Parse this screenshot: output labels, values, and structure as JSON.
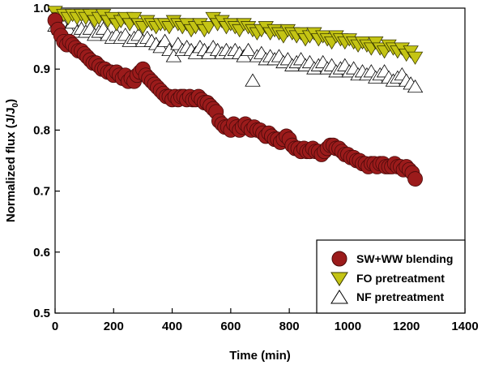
{
  "chart_data": {
    "type": "scatter",
    "xlabel": "Time (min)",
    "ylabel_main": "Normalized flux (J/J",
    "ylabel_sub": "0",
    "ylabel_end": ")",
    "xlim": [
      0,
      1400
    ],
    "ylim": [
      0.5,
      1.0
    ],
    "x_ticks": [
      0,
      200,
      400,
      600,
      800,
      1000,
      1200,
      1400
    ],
    "y_ticks": [
      0.5,
      0.6,
      0.7,
      0.8,
      0.9,
      1.0
    ],
    "y_tick_labels": [
      "0.5",
      "0.6",
      "0.7",
      "0.8",
      "0.9",
      "1.0"
    ],
    "grid": false,
    "legend_position": "bottom-right",
    "series": [
      {
        "name": "SW+WW blending",
        "marker": "circle",
        "color": "#9b1b1b",
        "stroke": "#4a0a0a",
        "x": [
          0,
          10,
          20,
          30,
          40,
          50,
          60,
          70,
          80,
          90,
          100,
          110,
          120,
          130,
          140,
          150,
          160,
          170,
          180,
          190,
          200,
          210,
          220,
          230,
          240,
          250,
          260,
          270,
          280,
          290,
          300,
          310,
          320,
          330,
          340,
          350,
          360,
          370,
          380,
          390,
          400,
          410,
          420,
          430,
          440,
          450,
          460,
          470,
          480,
          490,
          500,
          510,
          520,
          530,
          540,
          550,
          560,
          570,
          580,
          590,
          600,
          610,
          620,
          630,
          640,
          650,
          660,
          670,
          680,
          690,
          700,
          710,
          720,
          730,
          740,
          750,
          760,
          770,
          780,
          790,
          800,
          810,
          820,
          830,
          840,
          850,
          860,
          870,
          880,
          890,
          900,
          910,
          920,
          930,
          940,
          950,
          960,
          970,
          980,
          990,
          1000,
          1010,
          1020,
          1030,
          1040,
          1050,
          1060,
          1070,
          1080,
          1090,
          1100,
          1110,
          1120,
          1130,
          1140,
          1150,
          1160,
          1170,
          1180,
          1190,
          1200,
          1210,
          1220,
          1230
        ],
        "y": [
          0.98,
          0.965,
          0.955,
          0.945,
          0.94,
          0.945,
          0.94,
          0.935,
          0.93,
          0.93,
          0.925,
          0.92,
          0.915,
          0.91,
          0.91,
          0.905,
          0.9,
          0.9,
          0.895,
          0.895,
          0.89,
          0.895,
          0.89,
          0.885,
          0.89,
          0.88,
          0.885,
          0.88,
          0.89,
          0.895,
          0.9,
          0.89,
          0.885,
          0.88,
          0.875,
          0.87,
          0.865,
          0.86,
          0.855,
          0.855,
          0.85,
          0.855,
          0.85,
          0.855,
          0.855,
          0.85,
          0.855,
          0.85,
          0.85,
          0.855,
          0.85,
          0.845,
          0.845,
          0.84,
          0.835,
          0.83,
          0.815,
          0.81,
          0.805,
          0.805,
          0.8,
          0.81,
          0.805,
          0.8,
          0.805,
          0.81,
          0.805,
          0.8,
          0.805,
          0.8,
          0.8,
          0.795,
          0.79,
          0.795,
          0.79,
          0.785,
          0.785,
          0.78,
          0.785,
          0.79,
          0.785,
          0.775,
          0.77,
          0.77,
          0.765,
          0.77,
          0.765,
          0.765,
          0.77,
          0.765,
          0.765,
          0.76,
          0.765,
          0.77,
          0.775,
          0.775,
          0.77,
          0.77,
          0.765,
          0.76,
          0.76,
          0.755,
          0.755,
          0.75,
          0.75,
          0.745,
          0.745,
          0.74,
          0.745,
          0.745,
          0.74,
          0.745,
          0.745,
          0.74,
          0.74,
          0.74,
          0.745,
          0.74,
          0.74,
          0.735,
          0.74,
          0.735,
          0.73,
          0.72
        ]
      },
      {
        "name": "FO pretreatment",
        "marker": "triangle-down",
        "color": "#c4c414",
        "stroke": "#3a3a00",
        "x": [
          0,
          15,
          30,
          45,
          60,
          75,
          90,
          105,
          120,
          135,
          150,
          165,
          180,
          195,
          210,
          225,
          240,
          255,
          270,
          285,
          300,
          315,
          330,
          345,
          360,
          375,
          390,
          405,
          420,
          435,
          450,
          465,
          480,
          495,
          510,
          525,
          540,
          555,
          570,
          585,
          600,
          615,
          630,
          645,
          660,
          675,
          690,
          705,
          720,
          735,
          750,
          765,
          780,
          795,
          810,
          825,
          840,
          855,
          870,
          885,
          900,
          915,
          930,
          945,
          960,
          975,
          990,
          1005,
          1020,
          1035,
          1050,
          1065,
          1080,
          1095,
          1110,
          1125,
          1140,
          1155,
          1170,
          1185,
          1200,
          1215,
          1230
        ],
        "y": [
          0.995,
          0.985,
          0.99,
          0.985,
          0.99,
          0.985,
          0.99,
          0.985,
          0.99,
          0.98,
          0.985,
          0.99,
          0.98,
          0.985,
          0.975,
          0.98,
          0.985,
          0.975,
          0.985,
          0.975,
          0.97,
          0.98,
          0.975,
          0.97,
          0.975,
          0.975,
          0.97,
          0.98,
          0.975,
          0.97,
          0.975,
          0.965,
          0.97,
          0.975,
          0.965,
          0.97,
          0.985,
          0.975,
          0.98,
          0.97,
          0.975,
          0.97,
          0.965,
          0.975,
          0.97,
          0.965,
          0.96,
          0.965,
          0.97,
          0.96,
          0.965,
          0.96,
          0.955,
          0.965,
          0.96,
          0.955,
          0.96,
          0.95,
          0.955,
          0.96,
          0.95,
          0.955,
          0.95,
          0.945,
          0.955,
          0.95,
          0.945,
          0.95,
          0.945,
          0.94,
          0.945,
          0.94,
          0.935,
          0.945,
          0.935,
          0.93,
          0.94,
          0.935,
          0.93,
          0.935,
          0.925,
          0.93,
          0.92
        ]
      },
      {
        "name": "NF pretreatment",
        "marker": "triangle-up",
        "color": "#ffffff",
        "stroke": "#000000",
        "x": [
          0,
          15,
          30,
          45,
          60,
          75,
          90,
          105,
          120,
          135,
          150,
          165,
          180,
          195,
          210,
          225,
          240,
          255,
          270,
          285,
          300,
          315,
          330,
          345,
          360,
          375,
          390,
          405,
          420,
          435,
          450,
          465,
          480,
          495,
          510,
          525,
          540,
          555,
          570,
          585,
          600,
          615,
          630,
          645,
          660,
          675,
          690,
          705,
          720,
          735,
          750,
          765,
          780,
          795,
          810,
          825,
          840,
          855,
          870,
          885,
          900,
          915,
          930,
          945,
          960,
          975,
          990,
          1005,
          1020,
          1035,
          1050,
          1065,
          1080,
          1095,
          1110,
          1125,
          1140,
          1155,
          1170,
          1185,
          1200,
          1215,
          1230
        ],
        "y": [
          0.97,
          0.965,
          0.97,
          0.965,
          0.975,
          0.96,
          0.965,
          0.96,
          0.965,
          0.955,
          0.96,
          0.965,
          0.955,
          0.95,
          0.955,
          0.95,
          0.955,
          0.945,
          0.95,
          0.955,
          0.945,
          0.95,
          0.945,
          0.94,
          0.935,
          0.945,
          0.93,
          0.92,
          0.94,
          0.93,
          0.935,
          0.93,
          0.925,
          0.935,
          0.93,
          0.925,
          0.935,
          0.93,
          0.925,
          0.93,
          0.925,
          0.93,
          0.925,
          0.92,
          0.93,
          0.88,
          0.92,
          0.925,
          0.915,
          0.92,
          0.915,
          0.92,
          0.91,
          0.915,
          0.905,
          0.91,
          0.915,
          0.905,
          0.91,
          0.9,
          0.905,
          0.91,
          0.9,
          0.905,
          0.895,
          0.9,
          0.905,
          0.895,
          0.9,
          0.89,
          0.895,
          0.89,
          0.895,
          0.885,
          0.89,
          0.895,
          0.885,
          0.88,
          0.885,
          0.89,
          0.88,
          0.875,
          0.87
        ]
      }
    ]
  }
}
